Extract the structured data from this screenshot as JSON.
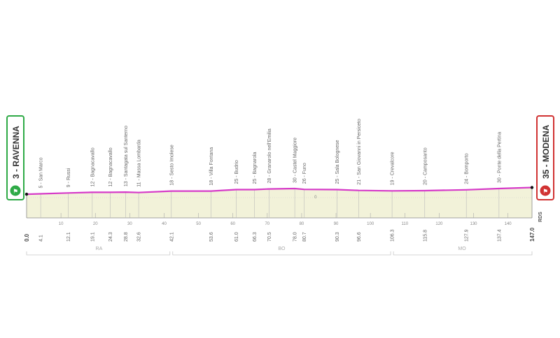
{
  "chart_data": {
    "type": "area",
    "title": "",
    "xlabel": "",
    "ylabel": "",
    "xlim": [
      0,
      147
    ],
    "ylim": [
      0,
      60
    ],
    "grid": false,
    "line_color": "#d63ac8",
    "fill_color": "#f2f2d9",
    "x_ticks": [
      "10",
      "20",
      "30",
      "40",
      "50",
      "60",
      "70",
      "80",
      "90",
      "100",
      "110",
      "120",
      "130",
      "140"
    ],
    "profile": {
      "x": [
        0,
        4.1,
        12.1,
        19.1,
        24.3,
        28.8,
        32.6,
        42.1,
        53.6,
        61.0,
        66.3,
        70.5,
        78.0,
        80.7,
        90.3,
        96.6,
        106.3,
        115.8,
        127.9,
        137.4,
        147.0
      ],
      "y": [
        3,
        5,
        9,
        12,
        12,
        13,
        11,
        18,
        18,
        25,
        25,
        28,
        30,
        26,
        25,
        21,
        19,
        20,
        24,
        30,
        35
      ]
    },
    "waypoints": [
      {
        "label": "5 - San Marco",
        "km": "4.1"
      },
      {
        "label": "9 - Russi",
        "km": "12.1"
      },
      {
        "label": "12 - Bagnacavallo",
        "km": "19.1"
      },
      {
        "label": "12 - Bagnacavallo",
        "km": "24.3"
      },
      {
        "label": "13 - Santagata sul Santerno",
        "km": "28.8"
      },
      {
        "label": "11 - Massa Lombarda",
        "km": "32.6"
      },
      {
        "label": "18 - Sesto Imolese",
        "km": "42.1"
      },
      {
        "label": "18 - Villa Fontana",
        "km": "53.6"
      },
      {
        "label": "25 - Budrio",
        "km": "61.0"
      },
      {
        "label": "25 - Bagnarola",
        "km": "66.3"
      },
      {
        "label": "28 - Granarolo nell'Emilia",
        "km": "70.5"
      },
      {
        "label": "30 - Castel Maggiore",
        "km": "78.0"
      },
      {
        "label": "26 - Funo",
        "km": "80.7"
      },
      {
        "label": "25 - Sala Bolognese",
        "km": "90.3"
      },
      {
        "label": "21 - San Giovanni in Persiceto",
        "km": "96.6"
      },
      {
        "label": "19 - Crevalcore",
        "km": "106.3"
      },
      {
        "label": "20 - Camposanto",
        "km": "115.8"
      },
      {
        "label": "24 - Bomporto",
        "km": "127.9"
      },
      {
        "label": "30 - Ponte della Pertina",
        "km": "137.4"
      }
    ],
    "regions": [
      {
        "label": "RA",
        "from": 0,
        "to": 42.1
      },
      {
        "label": "BO",
        "from": 42.1,
        "to": 106.3
      },
      {
        "label": "MO",
        "from": 106.3,
        "to": 147
      }
    ],
    "start": {
      "label": "3 - RAVENNA",
      "km": "0.0",
      "color": "#2eaa46"
    },
    "finish": {
      "label": "35 - MODENA",
      "km": "147.0",
      "color": "#d13232"
    },
    "marker_note": "0",
    "brand": "RDS"
  }
}
